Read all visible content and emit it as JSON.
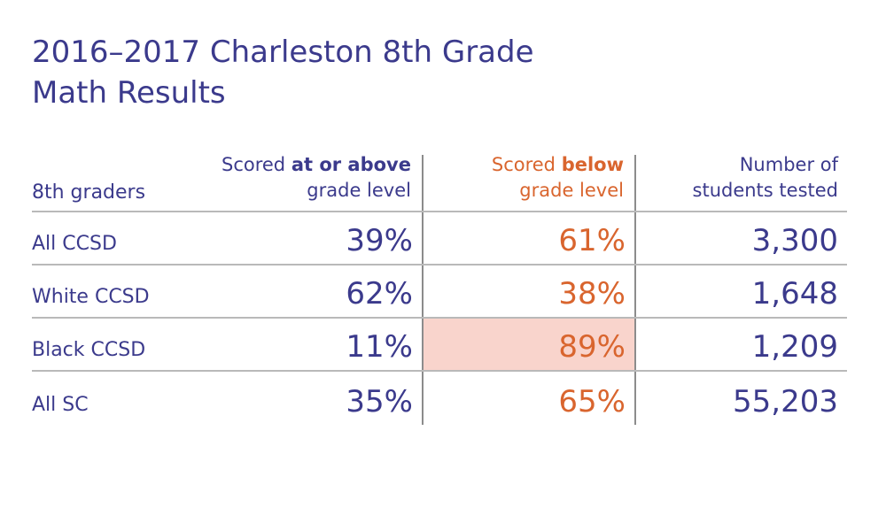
{
  "title": {
    "line1": "2016–2017 Charleston 8th Grade",
    "line2": "Math Results"
  },
  "colors": {
    "primary": "#3b3a8c",
    "accent": "#d9652e",
    "highlight": "#f9d4cc",
    "rule": "#b9b9b9"
  },
  "chart_data": {
    "type": "table",
    "title": "2016–2017 Charleston 8th Grade Math Results",
    "columns": [
      {
        "pre": "",
        "bold": "",
        "post": "8th graders"
      },
      {
        "pre": "Scored ",
        "bold": "at or above",
        "post": "grade level"
      },
      {
        "pre": "Scored ",
        "bold": "below",
        "post": "grade level"
      },
      {
        "pre": "Number of",
        "bold": "",
        "post": "students tested"
      }
    ],
    "rows": [
      {
        "group": "All CCSD",
        "above": "39%",
        "below": "61%",
        "tested": "3,300"
      },
      {
        "group": "White CCSD",
        "above": "62%",
        "below": "38%",
        "tested": "1,648"
      },
      {
        "group": "Black CCSD",
        "above": "11%",
        "below": "89%",
        "tested": "1,209"
      },
      {
        "group": "All SC",
        "above": "35%",
        "below": "65%",
        "tested": "55,203"
      }
    ],
    "highlighted_cell": {
      "row": "Black CCSD",
      "column": "below"
    }
  }
}
